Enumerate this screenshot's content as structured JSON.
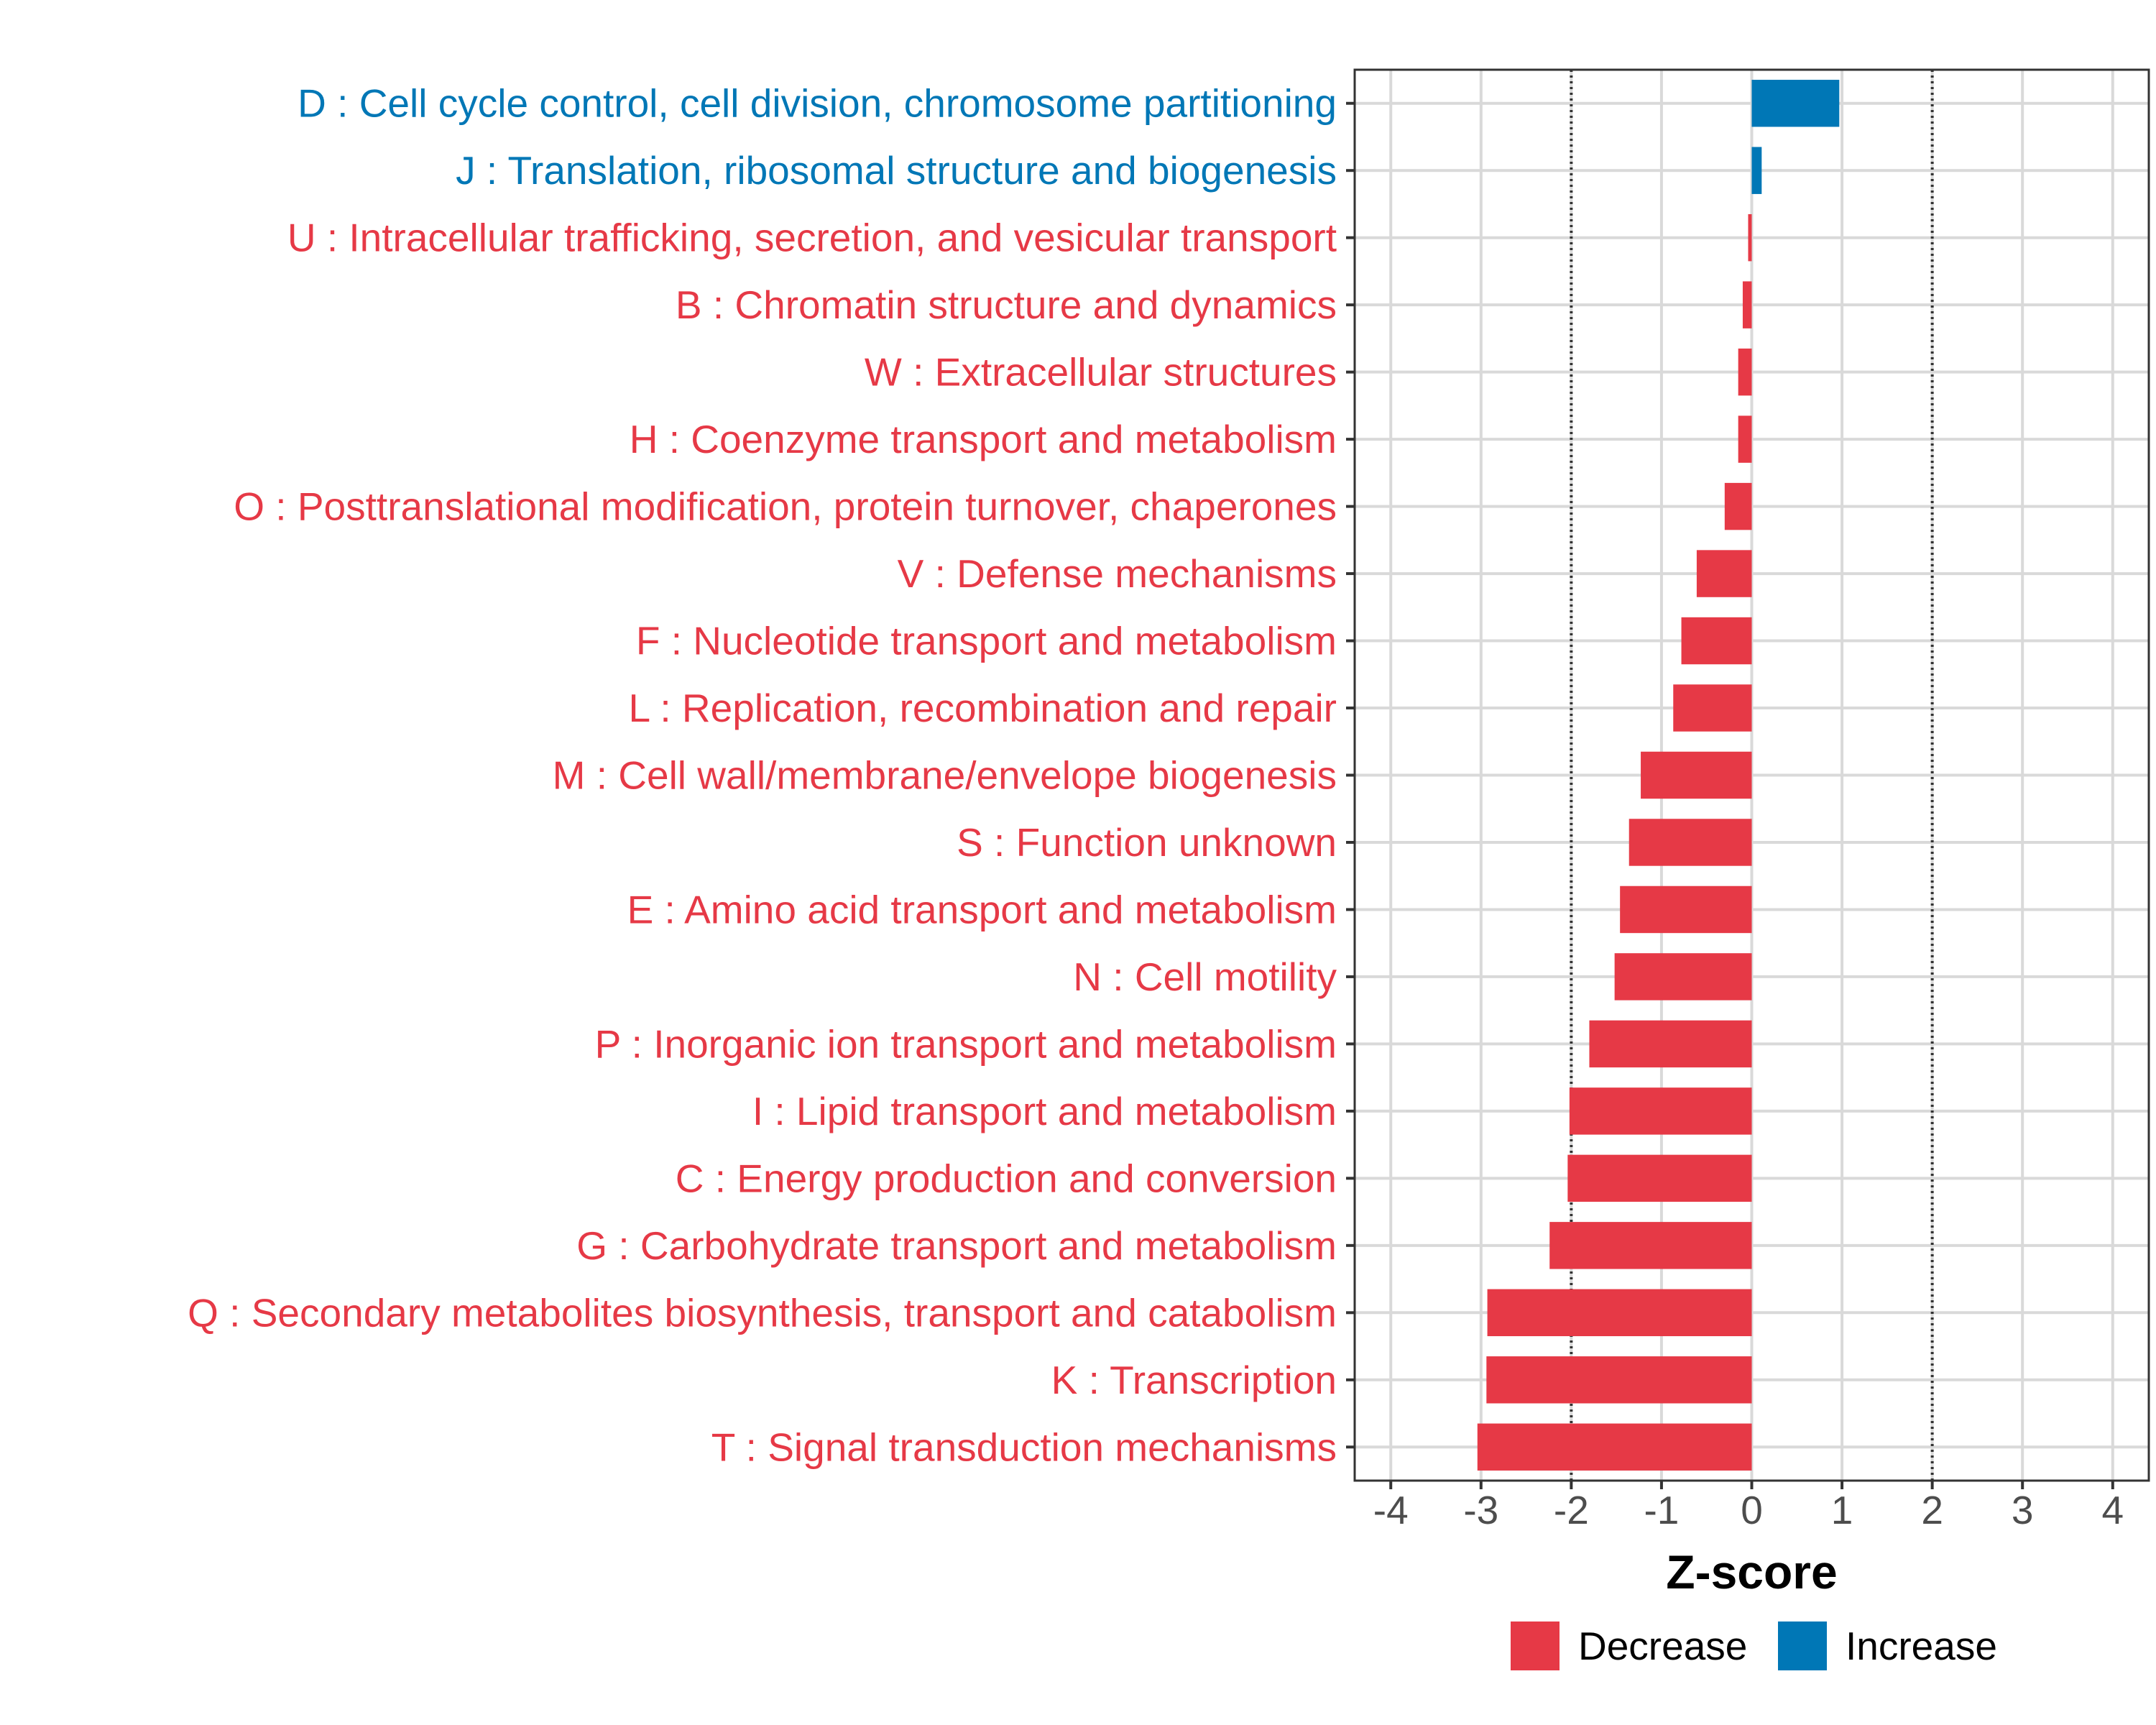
{
  "chart_data": {
    "type": "bar",
    "orientation": "horizontal",
    "title": "",
    "xlabel": "Z-score",
    "ylabel": "",
    "xlim": [
      -4.4,
      4.4
    ],
    "x_ticks": [
      -4,
      -3,
      -2,
      -1,
      0,
      1,
      2,
      3,
      4
    ],
    "x_tick_labels": [
      "-4",
      "-3",
      "-2",
      "-1",
      "0",
      "1",
      "2",
      "3",
      "4"
    ],
    "reference_lines": [
      -2,
      2
    ],
    "grid": true,
    "legend_position": "bottom",
    "colors": {
      "Decrease": "#E63946",
      "Increase": "#0077B6"
    },
    "categories": [
      "D : Cell cycle control, cell division, chromosome partitioning",
      "J : Translation, ribosomal structure and biogenesis",
      "U : Intracellular trafficking, secretion, and vesicular transport",
      "B : Chromatin structure and dynamics",
      "W : Extracellular structures",
      "H : Coenzyme transport and metabolism",
      "O : Posttranslational modification, protein turnover, chaperones",
      "V : Defense mechanisms",
      "F : Nucleotide transport and metabolism",
      "L : Replication, recombination and repair",
      "M : Cell wall/membrane/envelope biogenesis",
      "S : Function unknown",
      "E : Amino acid transport and metabolism",
      "N : Cell motility",
      "P : Inorganic ion transport and metabolism",
      "I : Lipid transport and metabolism",
      "C : Energy production and conversion",
      "G : Carbohydrate transport and metabolism",
      "Q : Secondary metabolites biosynthesis, transport and catabolism",
      "K : Transcription",
      "T : Signal transduction mechanisms"
    ],
    "values": [
      0.97,
      0.11,
      -0.04,
      -0.1,
      -0.15,
      -0.15,
      -0.3,
      -0.61,
      -0.78,
      -0.87,
      -1.23,
      -1.36,
      -1.46,
      -1.52,
      -1.8,
      -2.02,
      -2.04,
      -2.24,
      -2.93,
      -2.94,
      -3.04
    ],
    "groups": [
      "Increase",
      "Increase",
      "Decrease",
      "Decrease",
      "Decrease",
      "Decrease",
      "Decrease",
      "Decrease",
      "Decrease",
      "Decrease",
      "Decrease",
      "Decrease",
      "Decrease",
      "Decrease",
      "Decrease",
      "Decrease",
      "Decrease",
      "Decrease",
      "Decrease",
      "Decrease",
      "Decrease"
    ],
    "legend": [
      {
        "name": "Decrease",
        "color": "#E63946"
      },
      {
        "name": "Increase",
        "color": "#0077B6"
      }
    ]
  }
}
